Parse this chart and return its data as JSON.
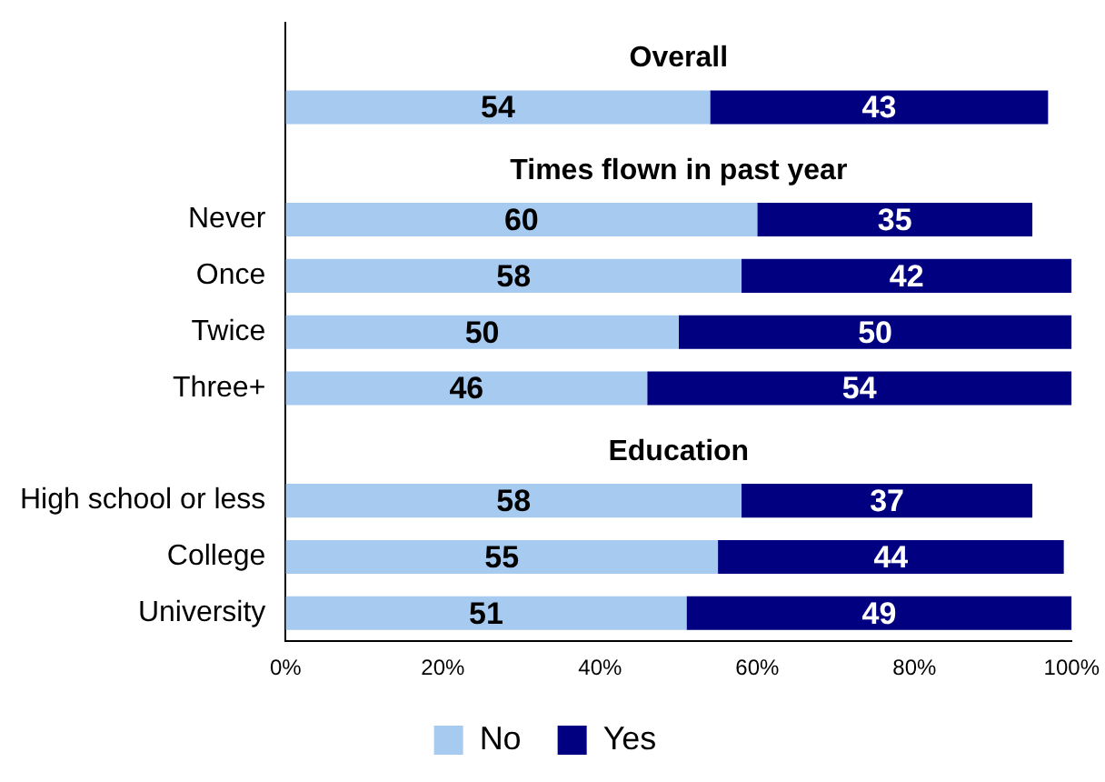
{
  "chart_data": {
    "type": "bar",
    "orientation": "horizontal",
    "stacked": true,
    "data_labels": true,
    "legend": "bottom",
    "grid": false,
    "categories": [
      null,
      null,
      null,
      "Never",
      "Once",
      "Twice",
      "Three+",
      null,
      "High school or less",
      "College",
      "University"
    ],
    "series": [
      {
        "name": "No",
        "color": "#a6caf0",
        "values": [
          null,
          54,
          null,
          60,
          58,
          50,
          46,
          null,
          58,
          55,
          51
        ]
      },
      {
        "name": "Yes",
        "color": "#000080",
        "values": [
          null,
          43,
          null,
          35,
          42,
          50,
          54,
          null,
          37,
          44,
          49
        ]
      }
    ],
    "annotations": [
      "Overall",
      "Times flown in past year",
      "Education"
    ],
    "xlim": [
      0,
      100
    ],
    "xticks": [
      {
        "value": 0,
        "label": "0%"
      },
      {
        "value": 20,
        "label": "20%"
      },
      {
        "value": 40,
        "label": "40%"
      },
      {
        "value": 60,
        "label": "60%"
      },
      {
        "value": 80,
        "label": "80%"
      },
      {
        "value": 100,
        "label": "100%"
      }
    ]
  }
}
